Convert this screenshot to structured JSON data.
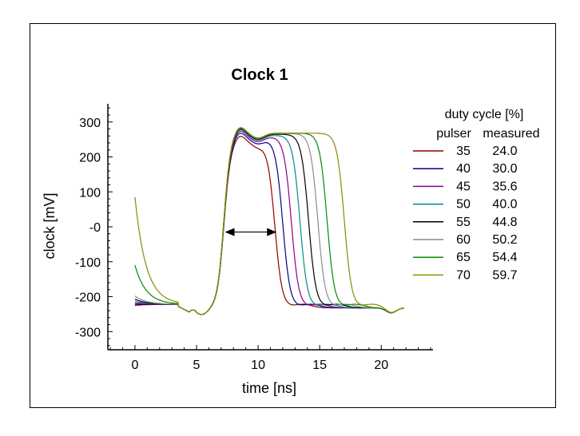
{
  "chart_data": {
    "type": "line",
    "title": "Clock 1",
    "xlabel": "time  [ns]",
    "ylabel": "clock  [mV]",
    "xlim": [
      -2.2,
      24.2
    ],
    "ylim": [
      -352,
      352
    ],
    "xticks": [
      0,
      5,
      10,
      15,
      20
    ],
    "xtick_labels": [
      "0",
      "5",
      "10",
      "15",
      "20"
    ],
    "yticks": [
      300,
      200,
      100,
      0,
      -100,
      -200,
      -300
    ],
    "ytick_labels": [
      "300",
      "200",
      "100",
      "-0",
      "-100",
      "-200",
      "-300"
    ],
    "grid": false,
    "legend": {
      "placement": "right",
      "title": "duty cycle [%]",
      "col1_header": "pulser",
      "col2_header": "measured"
    },
    "annotation": {
      "type": "double-arrow",
      "x_start": 7.3,
      "x_end": 11.5,
      "y": -15
    },
    "series": [
      {
        "pulser": "35",
        "measured": "24.0",
        "color": "#8b0000",
        "start_y": -225,
        "fall_at": 11.35,
        "plateau": 243
      },
      {
        "pulser": "40",
        "measured": "30.0",
        "color": "#00008b",
        "start_y": -222,
        "fall_at": 12.0,
        "plateau": 252
      },
      {
        "pulser": "45",
        "measured": "35.6",
        "color": "#8b008b",
        "start_y": -218,
        "fall_at": 12.7,
        "plateau": 258
      },
      {
        "pulser": "50",
        "measured": "40.0",
        "color": "#008b8b",
        "start_y": -213,
        "fall_at": 13.4,
        "plateau": 262
      },
      {
        "pulser": "55",
        "measured": "44.8",
        "color": "#000000",
        "start_y": -207,
        "fall_at": 14.1,
        "plateau": 265
      },
      {
        "pulser": "60",
        "measured": "50.2",
        "color": "#8c8c8c",
        "start_y": -198,
        "fall_at": 14.85,
        "plateau": 267
      },
      {
        "pulser": "65",
        "measured": "54.4",
        "color": "#008b00",
        "start_y": -110,
        "fall_at": 15.6,
        "plateau": 268
      },
      {
        "pulser": "70",
        "measured": "59.7",
        "color": "#8b8b00",
        "start_y": 85,
        "fall_at": 17.0,
        "plateau": 268
      }
    ]
  }
}
